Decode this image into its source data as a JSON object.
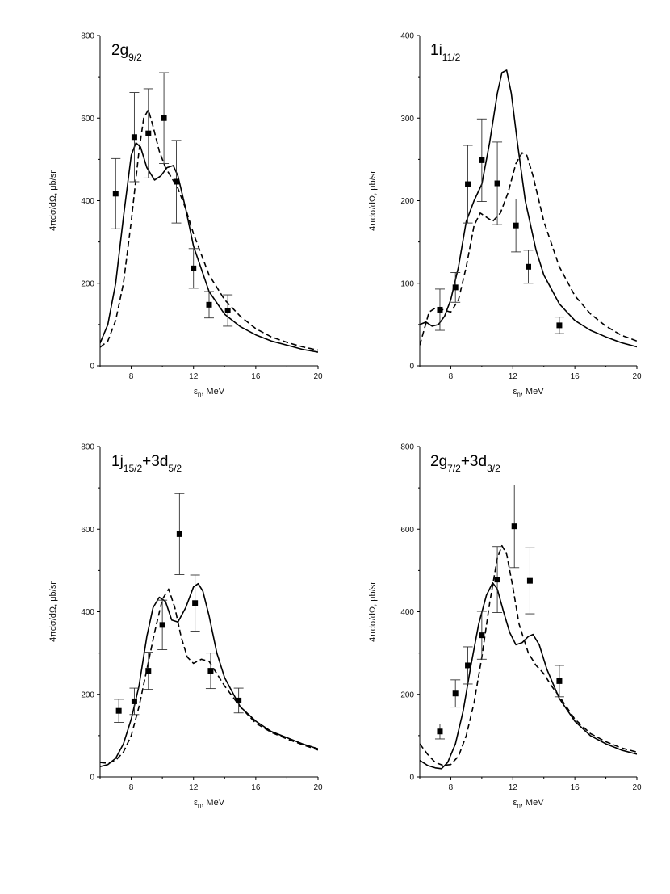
{
  "chart_data": [
    {
      "type": "line",
      "label_main": "2g",
      "label_sub": "9/2",
      "xlabel_main": "ε",
      "xlabel_sub": "n",
      "xlabel_unit": ", MeV",
      "ylabel": "4πdσ/dΩ, μb/sr",
      "xlim": [
        6,
        20
      ],
      "ylim": [
        0,
        800
      ],
      "xticks": [
        8,
        12,
        16,
        20
      ],
      "yticks": [
        0,
        200,
        400,
        600,
        800
      ],
      "series": [
        {
          "name": "solid",
          "style": "solid",
          "x": [
            6,
            6.5,
            7,
            7.5,
            8,
            8.3,
            8.6,
            9,
            9.5,
            9.9,
            10.3,
            10.7,
            11,
            11.5,
            12,
            13,
            14,
            15,
            16,
            17,
            18,
            19,
            20
          ],
          "y": [
            55,
            100,
            200,
            360,
            510,
            540,
            530,
            480,
            450,
            460,
            480,
            485,
            460,
            380,
            290,
            180,
            125,
            95,
            75,
            60,
            50,
            40,
            33
          ]
        },
        {
          "name": "dashed",
          "style": "dashed",
          "x": [
            6,
            6.5,
            7,
            7.5,
            8,
            8.5,
            8.8,
            9.1,
            9.4,
            9.8,
            10.2,
            10.6,
            11,
            11.5,
            12,
            13,
            14,
            15,
            16,
            17,
            18,
            19,
            20
          ],
          "y": [
            45,
            60,
            110,
            200,
            350,
            520,
            600,
            620,
            580,
            520,
            480,
            455,
            430,
            380,
            320,
            220,
            160,
            120,
            90,
            70,
            57,
            46,
            38
          ]
        }
      ],
      "points": [
        {
          "x": 7.0,
          "y": 417,
          "err": 85
        },
        {
          "x": 8.2,
          "y": 554,
          "err": 108
        },
        {
          "x": 9.1,
          "y": 563,
          "err": 108
        },
        {
          "x": 10.1,
          "y": 600,
          "err": 110
        },
        {
          "x": 10.9,
          "y": 446,
          "err": 100
        },
        {
          "x": 12.0,
          "y": 236,
          "err": 48
        },
        {
          "x": 13.0,
          "y": 148,
          "err": 32
        },
        {
          "x": 14.2,
          "y": 134,
          "err": 38
        }
      ]
    },
    {
      "type": "line",
      "label_main": "1i",
      "label_sub": "11/2",
      "xlabel_main": "ε",
      "xlabel_sub": "n",
      "xlabel_unit": ", MeV",
      "ylabel": "4πdσ/dΩ, μb/sr",
      "xlim": [
        6,
        20
      ],
      "ylim": [
        0,
        400
      ],
      "xticks": [
        8,
        12,
        16,
        20
      ],
      "yticks": [
        0,
        100,
        200,
        300,
        400
      ],
      "series": [
        {
          "name": "solid",
          "style": "solid",
          "x": [
            6,
            6.4,
            6.8,
            7.2,
            7.6,
            8,
            8.5,
            9,
            9.5,
            10,
            10.5,
            11,
            11.3,
            11.6,
            11.9,
            12.3,
            12.8,
            13.5,
            14,
            15,
            16,
            17,
            18,
            19,
            20
          ],
          "y": [
            50,
            53,
            48,
            50,
            60,
            80,
            120,
            175,
            200,
            220,
            270,
            330,
            355,
            358,
            330,
            270,
            200,
            140,
            110,
            75,
            55,
            43,
            35,
            28,
            23
          ]
        },
        {
          "name": "dashed",
          "style": "dashed",
          "x": [
            6,
            6.3,
            6.6,
            7,
            7.5,
            8,
            8.5,
            9,
            9.5,
            9.9,
            10.3,
            10.7,
            11.2,
            11.7,
            12.2,
            12.6,
            12.9,
            13.3,
            14,
            15,
            16,
            17,
            18,
            19,
            20
          ],
          "y": [
            25,
            45,
            65,
            70,
            68,
            65,
            80,
            120,
            170,
            185,
            180,
            175,
            185,
            210,
            245,
            258,
            255,
            230,
            175,
            120,
            85,
            63,
            48,
            37,
            30
          ]
        }
      ],
      "points": [
        {
          "x": 7.3,
          "y": 68,
          "err": 25
        },
        {
          "x": 8.3,
          "y": 95,
          "err": 18
        },
        {
          "x": 9.1,
          "y": 220,
          "err": 47
        },
        {
          "x": 10.0,
          "y": 249,
          "err": 50
        },
        {
          "x": 11.0,
          "y": 221,
          "err": 50
        },
        {
          "x": 12.2,
          "y": 170,
          "err": 32
        },
        {
          "x": 13.0,
          "y": 120,
          "err": 20
        },
        {
          "x": 15.0,
          "y": 49,
          "err": 10
        }
      ]
    },
    {
      "type": "line",
      "label_main": "1j",
      "label_sub": "15/2",
      "label_main2": "+3d",
      "label_sub2": "5/2",
      "xlabel_main": "ε",
      "xlabel_sub": "n",
      "xlabel_unit": ", MeV",
      "ylabel": "4πdσ/dΩ, μb/sr",
      "xlim": [
        6,
        20
      ],
      "ylim": [
        0,
        800
      ],
      "xticks": [
        8,
        12,
        16,
        20
      ],
      "yticks": [
        0,
        200,
        400,
        600,
        800
      ],
      "series": [
        {
          "name": "solid",
          "style": "solid",
          "x": [
            6,
            6.5,
            7,
            7.5,
            8,
            8.5,
            9,
            9.4,
            9.8,
            10.2,
            10.6,
            11,
            11.5,
            12,
            12.3,
            12.6,
            13,
            13.5,
            14,
            15,
            16,
            17,
            18,
            19,
            20
          ],
          "y": [
            25,
            30,
            45,
            80,
            140,
            220,
            340,
            410,
            435,
            425,
            380,
            375,
            410,
            460,
            468,
            450,
            390,
            300,
            240,
            170,
            135,
            110,
            95,
            80,
            68
          ]
        },
        {
          "name": "dashed",
          "style": "dashed",
          "x": [
            6,
            6.5,
            7,
            7.5,
            8,
            8.5,
            9,
            9.5,
            10,
            10.4,
            10.8,
            11.2,
            11.6,
            12,
            12.5,
            13,
            13.5,
            14,
            15,
            16,
            17,
            18,
            19,
            20
          ],
          "y": [
            35,
            33,
            40,
            60,
            100,
            170,
            260,
            350,
            430,
            455,
            410,
            340,
            290,
            275,
            285,
            280,
            250,
            220,
            170,
            130,
            108,
            92,
            78,
            65
          ]
        }
      ],
      "points": [
        {
          "x": 7.2,
          "y": 160,
          "err": 28
        },
        {
          "x": 8.2,
          "y": 183,
          "err": 32
        },
        {
          "x": 9.1,
          "y": 257,
          "err": 45
        },
        {
          "x": 10.0,
          "y": 368,
          "err": 60
        },
        {
          "x": 11.1,
          "y": 588,
          "err": 98
        },
        {
          "x": 12.1,
          "y": 421,
          "err": 68
        },
        {
          "x": 13.1,
          "y": 257,
          "err": 43
        },
        {
          "x": 14.9,
          "y": 185,
          "err": 30
        }
      ]
    },
    {
      "type": "line",
      "label_main": "2g",
      "label_sub": "7/2",
      "label_main2": "+3d",
      "label_sub2": "3/2",
      "xlabel_main": "ε",
      "xlabel_sub": "n",
      "xlabel_unit": ", MeV",
      "ylabel": "4πdσ/dΩ, μb/sr",
      "xlim": [
        6,
        20
      ],
      "ylim": [
        0,
        800
      ],
      "xticks": [
        8,
        12,
        16,
        20
      ],
      "yticks": [
        0,
        200,
        400,
        600,
        800
      ],
      "series": [
        {
          "name": "solid",
          "style": "solid",
          "x": [
            6,
            6.5,
            7,
            7.4,
            7.8,
            8.3,
            8.8,
            9.3,
            9.8,
            10.3,
            10.7,
            11,
            11.4,
            11.8,
            12.2,
            12.6,
            13,
            13.3,
            13.7,
            14.2,
            15,
            16,
            17,
            18,
            19,
            20
          ],
          "y": [
            40,
            28,
            22,
            20,
            35,
            80,
            160,
            270,
            370,
            440,
            470,
            455,
            400,
            350,
            320,
            325,
            340,
            345,
            320,
            260,
            190,
            135,
            100,
            80,
            65,
            55
          ]
        },
        {
          "name": "dashed",
          "style": "dashed",
          "x": [
            6,
            6.5,
            7,
            7.5,
            8,
            8.5,
            9,
            9.5,
            10,
            10.5,
            11,
            11.3,
            11.6,
            12,
            12.4,
            13,
            13.5,
            14,
            14.5,
            15,
            16,
            17,
            18,
            19,
            20
          ],
          "y": [
            80,
            55,
            35,
            28,
            30,
            50,
            100,
            180,
            290,
            420,
            530,
            560,
            540,
            460,
            370,
            300,
            270,
            250,
            220,
            195,
            140,
            105,
            85,
            70,
            60
          ]
        }
      ],
      "points": [
        {
          "x": 7.3,
          "y": 110,
          "err": 18
        },
        {
          "x": 8.3,
          "y": 202,
          "err": 33
        },
        {
          "x": 9.1,
          "y": 270,
          "err": 45
        },
        {
          "x": 10.0,
          "y": 343,
          "err": 58
        },
        {
          "x": 11.0,
          "y": 478,
          "err": 80
        },
        {
          "x": 12.1,
          "y": 607,
          "err": 100
        },
        {
          "x": 13.1,
          "y": 475,
          "err": 80
        },
        {
          "x": 15.0,
          "y": 232,
          "err": 38
        }
      ]
    }
  ]
}
